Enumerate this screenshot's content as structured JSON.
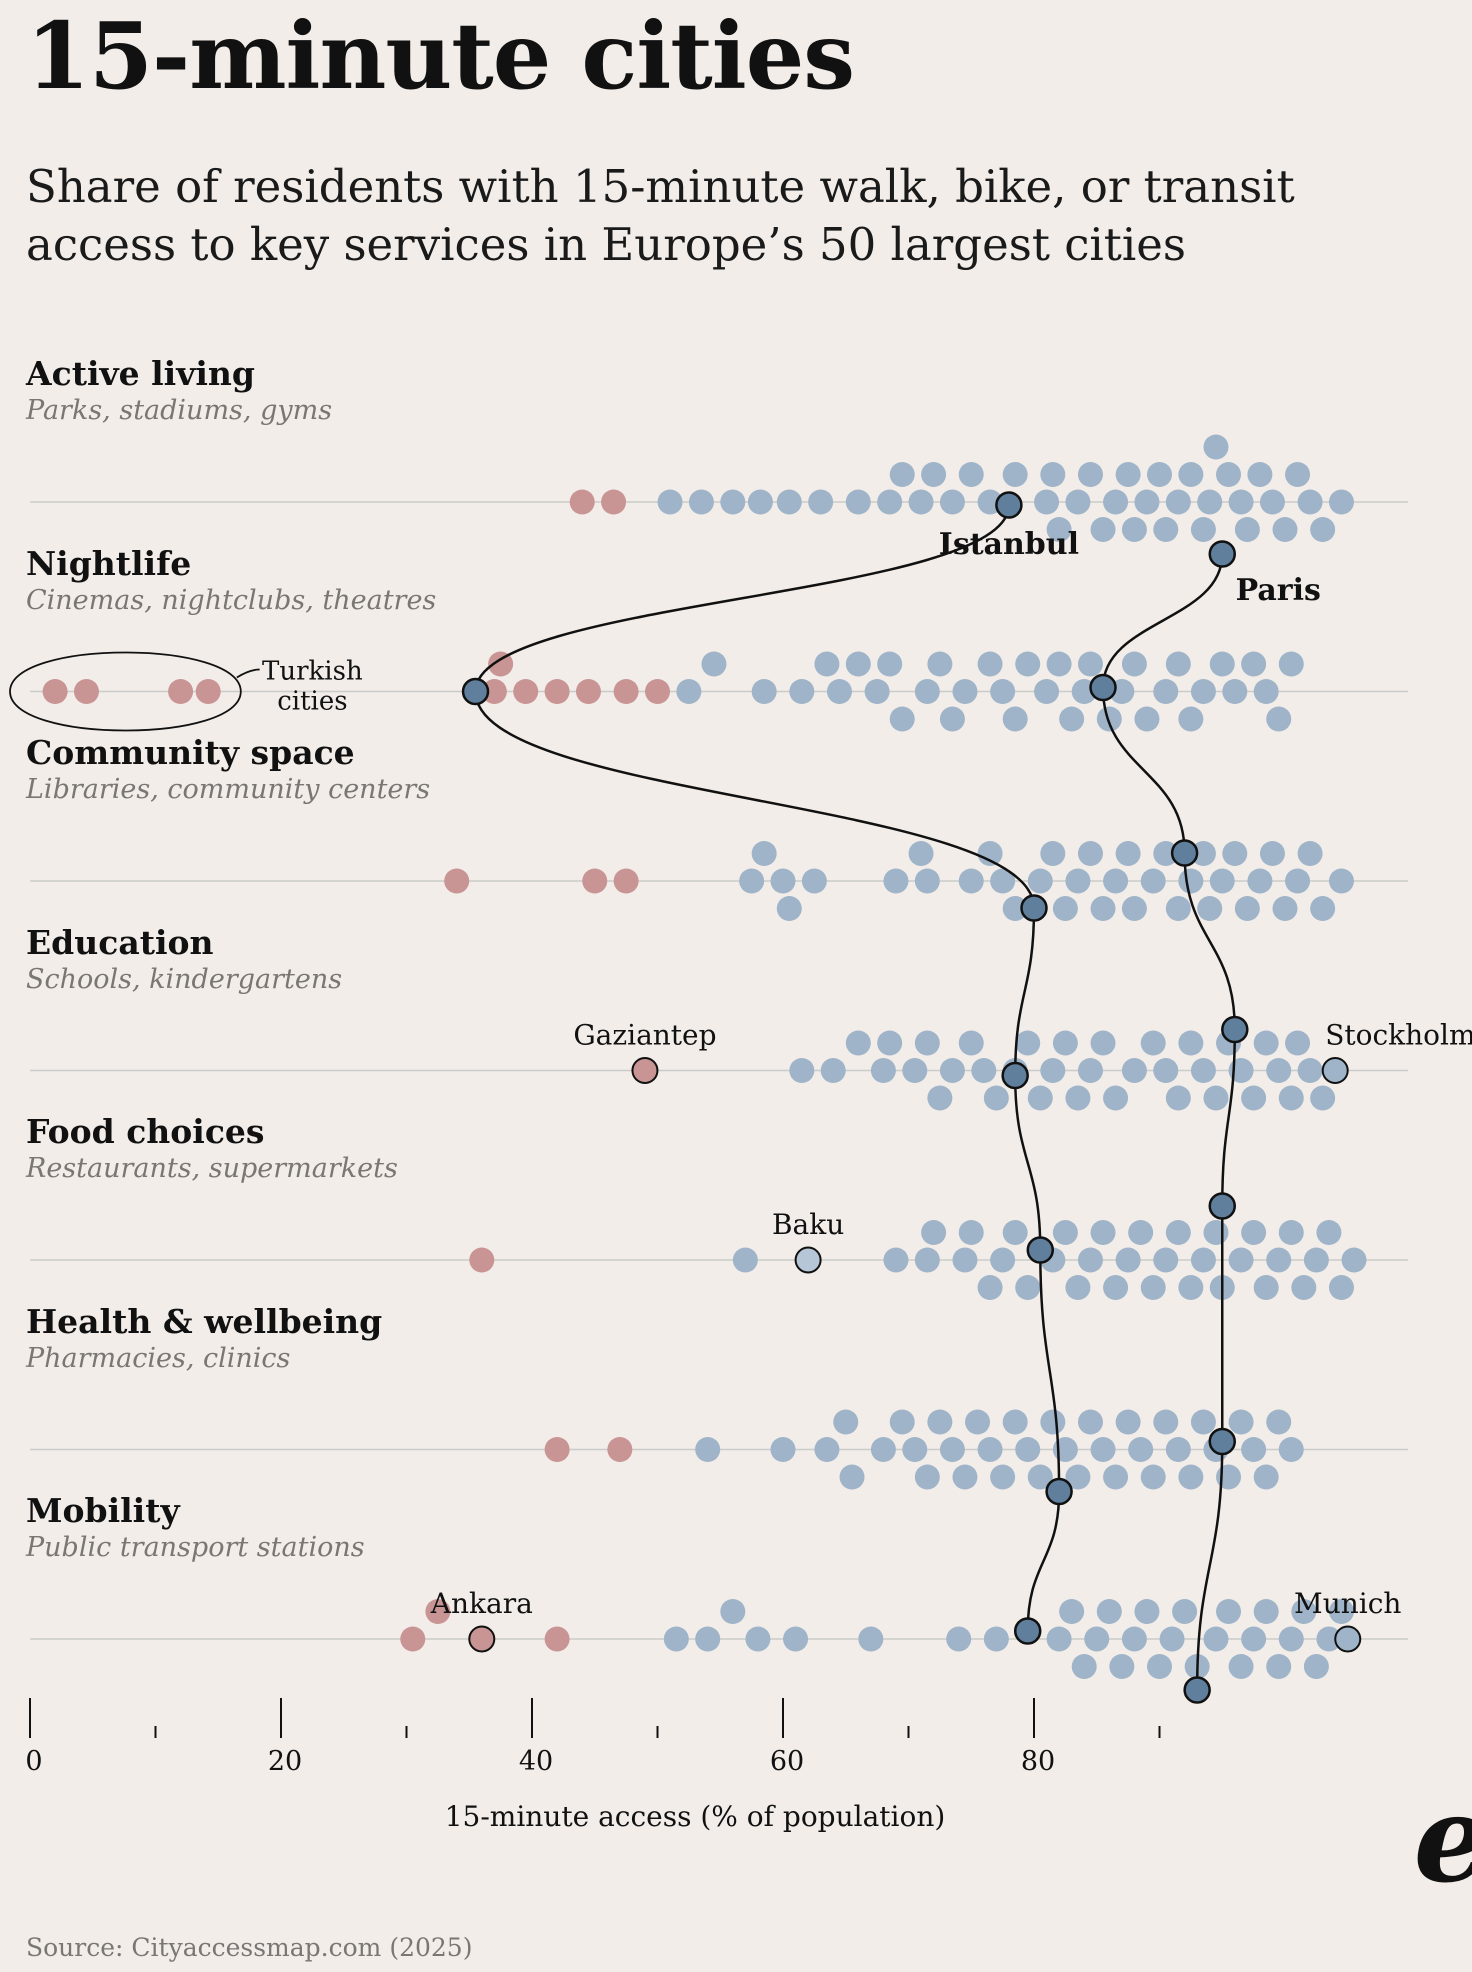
{
  "title": "15-minute cities",
  "subtitle": "Share of residents with 15-minute walk, bike, or transit access to key services in Europe’s 50 largest cities",
  "logo_text": "e",
  "source": "Source: Cityaccessmap.com (2025)",
  "colors": {
    "background": "#f2ede9",
    "european_dot": "#9fb4c8",
    "turkish_dot": "#c99494",
    "highlight_dot": "#5f7f9c",
    "outline": "#111111",
    "baseline": "#c9ccc9"
  },
  "chart_data": {
    "type": "beeswarm",
    "title": "15-minute cities",
    "xlabel": "15-minute access (% of population)",
    "xlim": [
      0,
      110
    ],
    "x_ticks_major": [
      0,
      20,
      40,
      60,
      80
    ],
    "x_ticks_minor": [
      10,
      30,
      50,
      70,
      90
    ],
    "categories": [
      {
        "name": "Active living",
        "subtitle": "Parks, stadiums, gyms",
        "turkish": [
          44,
          46.5
        ],
        "european": [
          51,
          53.5,
          56,
          58.2,
          60.5,
          63,
          66,
          68.5,
          69.5,
          71,
          72,
          73.5,
          75,
          76.5,
          78.5,
          81,
          81.5,
          82,
          83.5,
          84.5,
          85.5,
          86.5,
          87.5,
          88,
          89,
          90,
          90.5,
          91.5,
          92.5,
          93.5,
          94,
          94.5,
          95.5,
          96.5,
          97,
          98,
          99,
          100,
          101,
          102,
          103,
          104.5
        ],
        "named": [
          {
            "label": "Istanbul",
            "value": 78,
            "side": "below"
          },
          {
            "label": "Paris",
            "value": 95,
            "side": "below"
          }
        ]
      },
      {
        "name": "Nightlife",
        "subtitle": "Cinemas, nightclubs, theatres",
        "turkish": [
          2,
          4.5,
          12,
          14.2,
          37,
          37.5,
          39.5,
          42,
          44.5,
          47.5,
          50
        ],
        "european": [
          52.5,
          54.5,
          58.5,
          61.5,
          63.5,
          64.5,
          66,
          67.5,
          68.5,
          69.5,
          71.5,
          72.5,
          73.5,
          74.5,
          76.5,
          77.5,
          78.5,
          79.5,
          81,
          82,
          83,
          84,
          84.5,
          86,
          87,
          88,
          89,
          90.5,
          91.5,
          92.5,
          93.5,
          95,
          96,
          97.5,
          98.5,
          99.5,
          100.5
        ],
        "named": [
          {
            "label": "Istanbul",
            "value": 35.5
          },
          {
            "label": "Paris",
            "value": 85.5
          }
        ],
        "annotation": "Turkish\ncities"
      },
      {
        "name": "Community space",
        "subtitle": "Libraries, community centers",
        "turkish": [
          34,
          45,
          47.5
        ],
        "european": [
          57.5,
          58.5,
          60,
          60.5,
          62.5,
          69,
          71,
          71.5,
          75,
          76.5,
          77.5,
          78.5,
          80.5,
          81.5,
          82.5,
          83.5,
          84.5,
          85.5,
          86.5,
          87.5,
          88,
          89.5,
          90.5,
          91.5,
          92.5,
          93.5,
          94,
          95,
          96,
          97,
          98,
          99,
          100,
          101,
          102,
          103,
          104.5
        ],
        "named": [
          {
            "label": "Istanbul",
            "value": 80
          },
          {
            "label": "Paris",
            "value": 92
          }
        ]
      },
      {
        "name": "Education",
        "subtitle": "Schools, kindergartens",
        "turkish": [],
        "european": [
          61.5,
          64,
          66,
          68,
          68.5,
          70.5,
          71.5,
          72.5,
          73.5,
          75,
          76,
          77,
          78.5,
          79.5,
          80.5,
          81.5,
          82.5,
          83.5,
          84.5,
          85.5,
          86.5,
          88,
          89.5,
          90.5,
          91.5,
          92.5,
          93.5,
          94.5,
          95.5,
          96.5,
          97.5,
          98.5,
          99.5,
          100.5,
          101,
          102,
          103
        ],
        "named": [
          {
            "label": "Gaziantep",
            "value": 49,
            "side": "above",
            "turkish": true
          },
          {
            "label": "Istanbul",
            "value": 78.5
          },
          {
            "label": "Paris",
            "value": 96
          },
          {
            "label": "Stockholm",
            "value": 104,
            "side": "above"
          }
        ]
      },
      {
        "name": "Food choices",
        "subtitle": "Restaurants, supermarkets",
        "turkish": [
          36
        ],
        "european": [
          57,
          69,
          71.5,
          72,
          74.5,
          75,
          76.5,
          77.5,
          78.5,
          79.5,
          81.5,
          82.5,
          83.5,
          84.5,
          85.5,
          86.5,
          87.5,
          88.5,
          89.5,
          90.5,
          91.5,
          92.5,
          93.5,
          94.5,
          95,
          96.5,
          97.5,
          98.5,
          99.5,
          100.5,
          101.5,
          102.5,
          103.5,
          104.5,
          105.5
        ],
        "named": [
          {
            "label": "Baku",
            "value": 62,
            "side": "above",
            "other": true
          },
          {
            "label": "Istanbul",
            "value": 80.5
          },
          {
            "label": "Paris",
            "value": 95
          }
        ]
      },
      {
        "name": "Health & wellbeing",
        "subtitle": "Pharmacies, clinics",
        "turkish": [
          42,
          47
        ],
        "european": [
          54,
          60,
          63.5,
          65,
          65.5,
          68,
          69.5,
          70.5,
          71.5,
          72.5,
          73.5,
          74.5,
          75.5,
          76.5,
          77.5,
          78.5,
          79.5,
          80.5,
          81.5,
          82.5,
          83.5,
          84.5,
          85.5,
          86.5,
          87.5,
          88.5,
          89.5,
          90.5,
          91.5,
          92.5,
          93.5,
          94.5,
          95.5,
          96.5,
          97.5,
          98.5,
          99.5,
          100.5
        ],
        "named": [
          {
            "label": "Istanbul",
            "value": 82
          },
          {
            "label": "Paris",
            "value": 95
          }
        ]
      },
      {
        "name": "Mobility",
        "subtitle": "Public transport stations",
        "turkish": [
          30.5,
          32.5,
          42
        ],
        "european": [
          51.5,
          54,
          56,
          58,
          61,
          67,
          74,
          77,
          82,
          83,
          84,
          85,
          86,
          87,
          88,
          89,
          90,
          91,
          92,
          93,
          94.5,
          95.5,
          96.5,
          97.5,
          98.5,
          99.5,
          100.5,
          101.5,
          102.5,
          103.5,
          104.5
        ],
        "named": [
          {
            "label": "Ankara",
            "value": 36,
            "side": "above",
            "turkish": true
          },
          {
            "label": "Istanbul",
            "value": 79.5
          },
          {
            "label": "Paris",
            "value": 93
          },
          {
            "label": "Munich",
            "value": 105,
            "side": "above"
          }
        ]
      }
    ],
    "series_lines": [
      "Istanbul",
      "Paris"
    ]
  }
}
